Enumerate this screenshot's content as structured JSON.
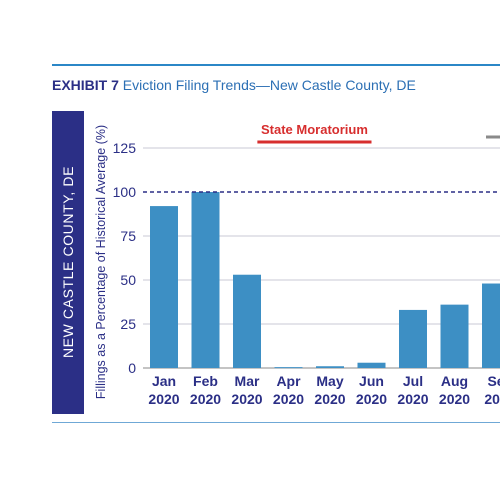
{
  "header": {
    "exhibit_label": "EXHIBIT 7",
    "title": "Eviction Filing Trends—New Castle County, DE"
  },
  "side_panel": {
    "label": "NEW CASTLE COUNTY, DE"
  },
  "colors": {
    "bar": "#3d8fc4",
    "moratorium": "#d72e2e",
    "reference_line": "#2b2f86",
    "axis_text": "#2b2f86",
    "panel": "#2b2f86",
    "rule": "#2b87c7"
  },
  "chart_data": {
    "type": "bar",
    "title": "",
    "ylabel": "Fillings as a Percentage of Historical Average (%)",
    "xlabel": "",
    "ylim": [
      0,
      125
    ],
    "yticks": [
      0,
      25,
      50,
      75,
      100,
      125
    ],
    "grid": true,
    "categories": [
      [
        "Jan",
        "2020"
      ],
      [
        "Feb",
        "2020"
      ],
      [
        "Mar",
        "2020"
      ],
      [
        "Apr",
        "2020"
      ],
      [
        "May",
        "2020"
      ],
      [
        "Jun",
        "2020"
      ],
      [
        "Jul",
        "2020"
      ],
      [
        "Aug",
        "2020"
      ],
      [
        "Se",
        "202"
      ]
    ],
    "values": [
      92,
      100,
      53,
      0.5,
      1,
      3,
      33,
      36,
      48
    ],
    "reference_line": {
      "value": 100,
      "style": "dashed"
    },
    "annotations": [
      {
        "label": "State Moratorium",
        "start_index": 2.25,
        "end_index": 5.0
      }
    ]
  }
}
